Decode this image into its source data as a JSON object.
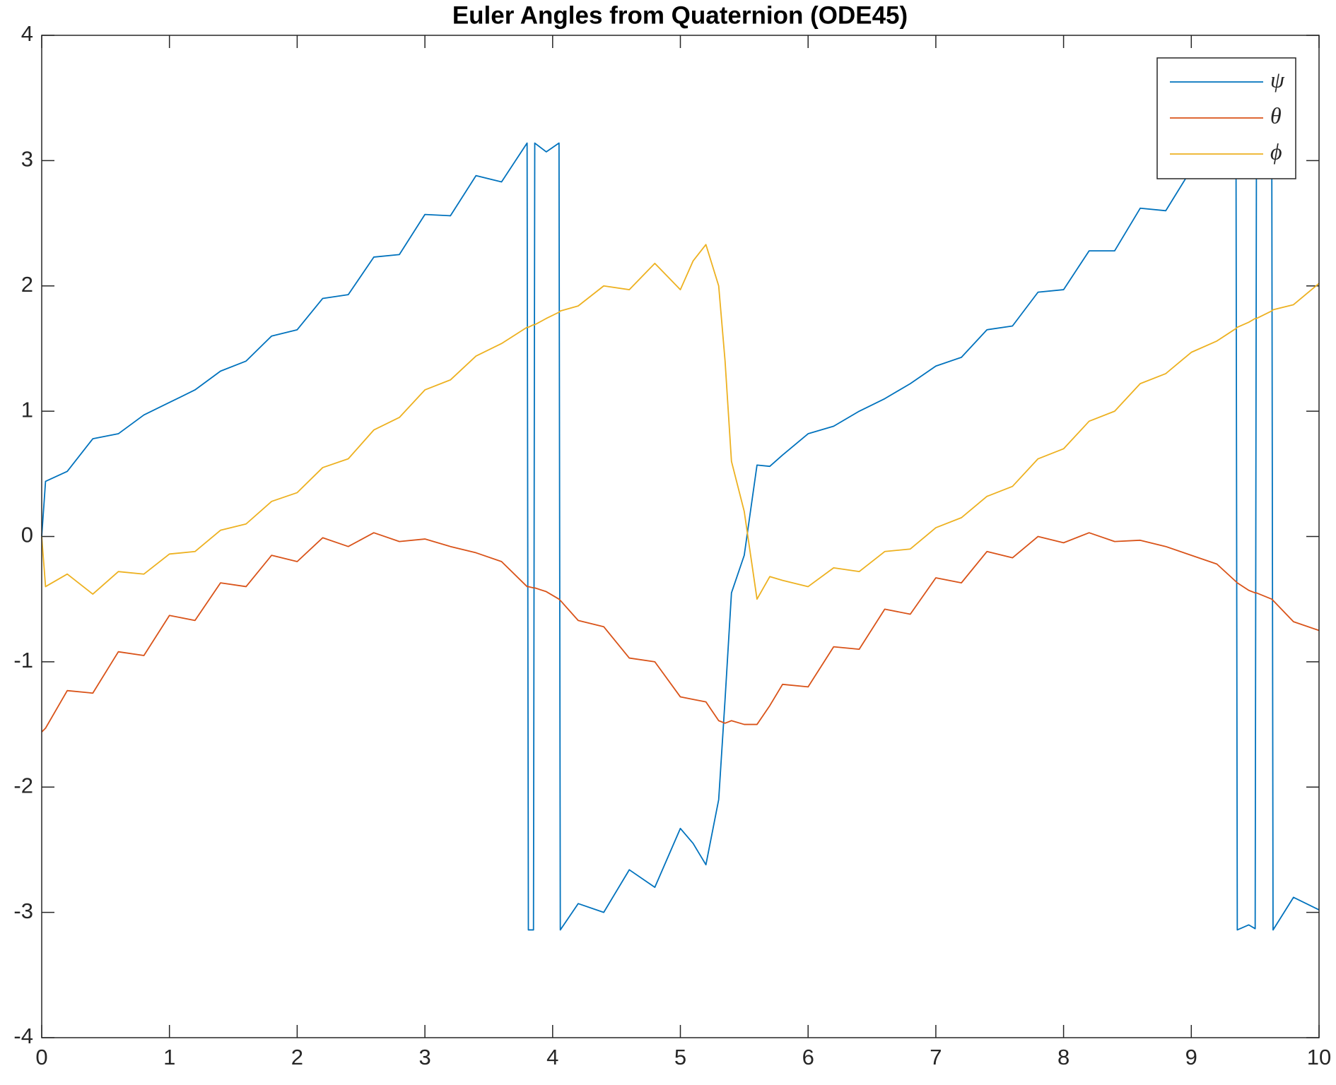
{
  "chart_data": {
    "type": "line",
    "title": "Euler Angles from Quaternion (ODE45)",
    "x": [
      0,
      0.03,
      0.2,
      0.4,
      0.6,
      0.8,
      1,
      1.2,
      1.4,
      1.6,
      1.8,
      2,
      2.2,
      2.4,
      2.6,
      2.8,
      3,
      3.2,
      3.4,
      3.6,
      3.8,
      3.81,
      3.85,
      3.86,
      3.95,
      4.05,
      4.06,
      4.2,
      4.4,
      4.6,
      4.8,
      5,
      5.1,
      5.2,
      5.3,
      5.35,
      5.4,
      5.5,
      5.6,
      5.7,
      5.8,
      6,
      6.2,
      6.4,
      6.6,
      6.8,
      7,
      7.2,
      7.4,
      7.6,
      7.8,
      8,
      8.2,
      8.4,
      8.6,
      8.8,
      9,
      9.2,
      9.35,
      9.36,
      9.45,
      9.5,
      9.51,
      9.63,
      9.64,
      9.8,
      10
    ],
    "series": [
      {
        "name": "ψ",
        "color": "#0072BD",
        "values": [
          0,
          0.44,
          0.52,
          0.78,
          0.82,
          0.97,
          1.07,
          1.17,
          1.32,
          1.4,
          1.6,
          1.65,
          1.9,
          1.93,
          2.23,
          2.25,
          2.57,
          2.56,
          2.88,
          2.83,
          3.14,
          -3.14,
          -3.14,
          3.14,
          3.07,
          3.14,
          -3.14,
          -2.93,
          -3.0,
          -2.66,
          -2.8,
          -2.33,
          -2.45,
          -2.62,
          -2.1,
          -1.3,
          -0.45,
          -0.15,
          0.57,
          0.56,
          0.65,
          0.82,
          0.88,
          1.0,
          1.1,
          1.22,
          1.36,
          1.43,
          1.65,
          1.68,
          1.95,
          1.97,
          2.28,
          2.28,
          2.62,
          2.6,
          2.93,
          2.87,
          3.14,
          -3.14,
          -3.1,
          -3.13,
          3.14,
          3.14,
          -3.14,
          -2.88,
          -2.98
        ]
      },
      {
        "name": "θ",
        "color": "#D95319",
        "values": [
          -1.56,
          -1.53,
          -1.23,
          -1.25,
          -0.92,
          -0.95,
          -0.63,
          -0.67,
          -0.37,
          -0.4,
          -0.15,
          -0.2,
          -0.01,
          -0.08,
          0.03,
          -0.04,
          -0.02,
          -0.08,
          -0.13,
          -0.2,
          -0.4,
          -0.4,
          -0.41,
          -0.41,
          -0.44,
          -0.5,
          -0.51,
          -0.67,
          -0.72,
          -0.97,
          -1.0,
          -1.28,
          -1.3,
          -1.32,
          -1.47,
          -1.49,
          -1.47,
          -1.5,
          -1.5,
          -1.35,
          -1.18,
          -1.2,
          -0.88,
          -0.9,
          -0.58,
          -0.62,
          -0.33,
          -0.37,
          -0.12,
          -0.17,
          0.0,
          -0.05,
          0.03,
          -0.04,
          -0.03,
          -0.08,
          -0.15,
          -0.22,
          -0.36,
          -0.37,
          -0.43,
          -0.45,
          -0.45,
          -0.5,
          -0.51,
          -0.68,
          -0.75
        ]
      },
      {
        "name": "ϕ",
        "color": "#EDB120",
        "values": [
          0,
          -0.4,
          -0.3,
          -0.46,
          -0.28,
          -0.3,
          -0.14,
          -0.12,
          0.05,
          0.1,
          0.28,
          0.35,
          0.55,
          0.62,
          0.85,
          0.95,
          1.17,
          1.25,
          1.44,
          1.54,
          1.67,
          1.67,
          1.69,
          1.69,
          1.74,
          1.79,
          1.8,
          1.84,
          2.0,
          1.97,
          2.18,
          1.97,
          2.2,
          2.33,
          2.0,
          1.4,
          0.6,
          0.2,
          -0.5,
          -0.32,
          -0.35,
          -0.4,
          -0.25,
          -0.28,
          -0.12,
          -0.1,
          0.07,
          0.15,
          0.32,
          0.4,
          0.62,
          0.7,
          0.92,
          1.0,
          1.22,
          1.3,
          1.47,
          1.56,
          1.66,
          1.67,
          1.71,
          1.74,
          1.74,
          1.8,
          1.81,
          1.85,
          2.02
        ]
      }
    ],
    "xlim": [
      0,
      10
    ],
    "xticks": [
      0,
      1,
      2,
      3,
      4,
      5,
      6,
      7,
      8,
      9,
      10
    ],
    "ylim": [
      -4,
      4
    ],
    "yticks": [
      -4,
      -3,
      -2,
      -1,
      0,
      1,
      2,
      3,
      4
    ],
    "grid": false,
    "legend": "northeast"
  }
}
